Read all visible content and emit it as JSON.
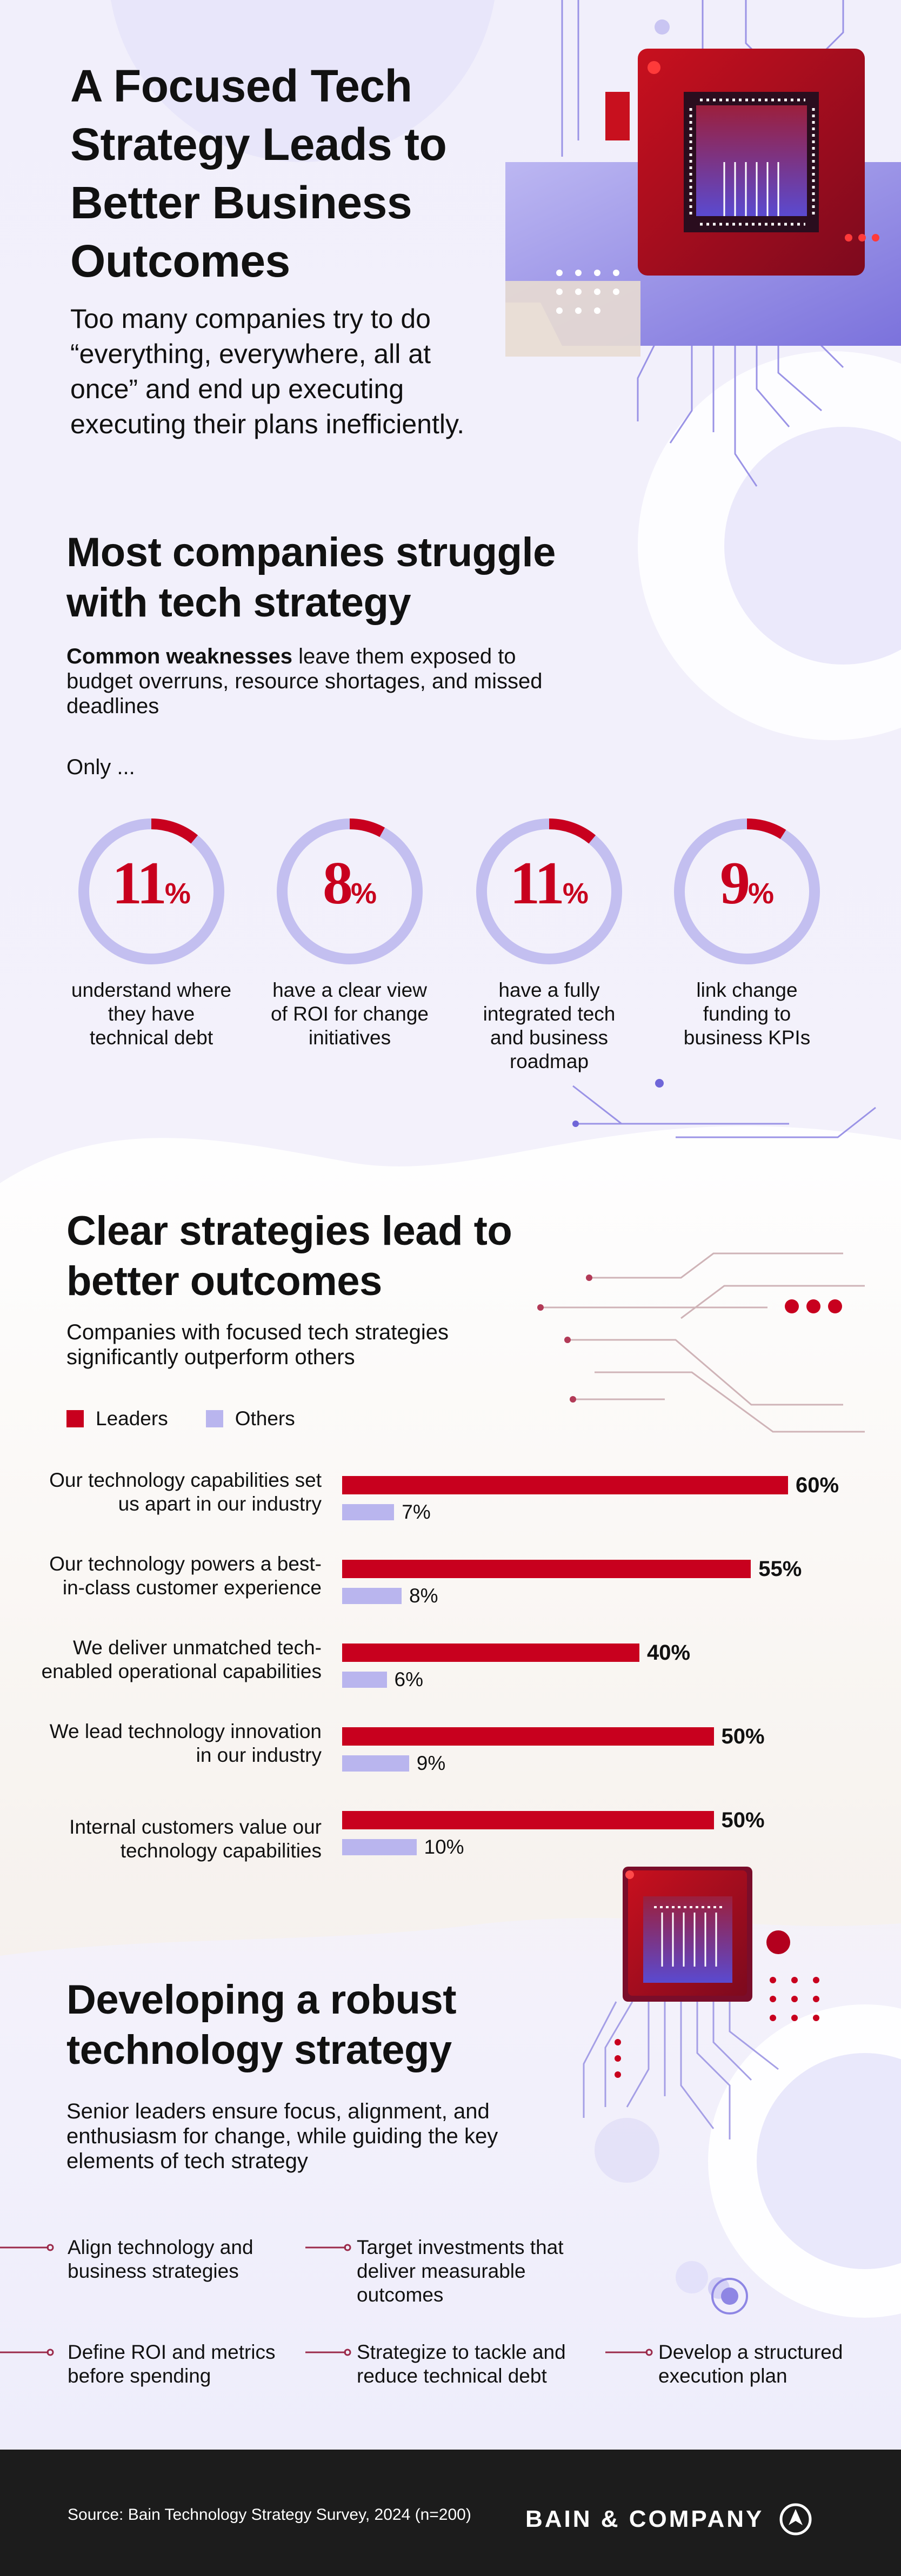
{
  "hero": {
    "title": "A Focused Tech Strategy Leads to Better Business Outcomes",
    "subtitle": "Too many companies try to do “everything, everywhere, all at once” and end up executing executing their plans inefficiently."
  },
  "struggle": {
    "title": "Most companies struggle with tech strategy",
    "intro_bold": "Common weaknesses",
    "intro_rest": " leave them exposed to budget overruns, resource shortages, and missed deadlines",
    "only": "Only ...",
    "stats": [
      {
        "value": 11,
        "unit": "%",
        "caption": "understand where they have technical debt"
      },
      {
        "value": 8,
        "unit": "%",
        "caption": "have a clear view of ROI for change initiatives"
      },
      {
        "value": 11,
        "unit": "%",
        "caption": "have a fully integrated tech and business roadmap"
      },
      {
        "value": 9,
        "unit": "%",
        "caption": "link change funding to business KPIs"
      }
    ]
  },
  "outcomes": {
    "title": "Clear strategies lead to better outcomes",
    "subtitle": "Companies with focused tech strategies significantly outperform others"
  },
  "chart_data": {
    "type": "bar",
    "orientation": "horizontal",
    "categories": [
      "Our technology capabilities set us apart in our industry",
      "Our technology powers a best-in-class customer experience",
      "We deliver unmatched tech-enabled operational capabilities",
      "We lead technology innovation in our industry",
      "Internal customers value our technology capabilities"
    ],
    "series": [
      {
        "name": "Leaders",
        "color": "#c8001e",
        "values": [
          60,
          55,
          40,
          50,
          50
        ]
      },
      {
        "name": "Others",
        "color": "#b9b5ee",
        "values": [
          7,
          8,
          6,
          9,
          10
        ]
      }
    ],
    "value_suffix": "%",
    "legend": "top-left",
    "grid": false,
    "xlim": [
      0,
      60
    ]
  },
  "develop": {
    "title": "Developing a robust technology strategy",
    "subtitle": "Senior leaders ensure focus, alignment, and enthusiasm for change, while guiding the key elements of tech strategy",
    "steps": [
      "Align technology and business strategies",
      "Target investments that deliver measurable outcomes",
      "Define ROI and metrics before spending",
      "Strategize to tackle and reduce technical debt",
      "Develop a structured execution plan"
    ]
  },
  "footer": {
    "source": "Source: Bain Technology Strategy Survey, 2024 (n=200)",
    "brand": "BAIN & COMPANY",
    "brand_icon": "bain-logo-icon"
  },
  "colors": {
    "accent_red": "#c8001e",
    "accent_lavender": "#b9b5ee",
    "ring_track": "#c3bff0",
    "footer_bg": "#1c1c1c"
  }
}
